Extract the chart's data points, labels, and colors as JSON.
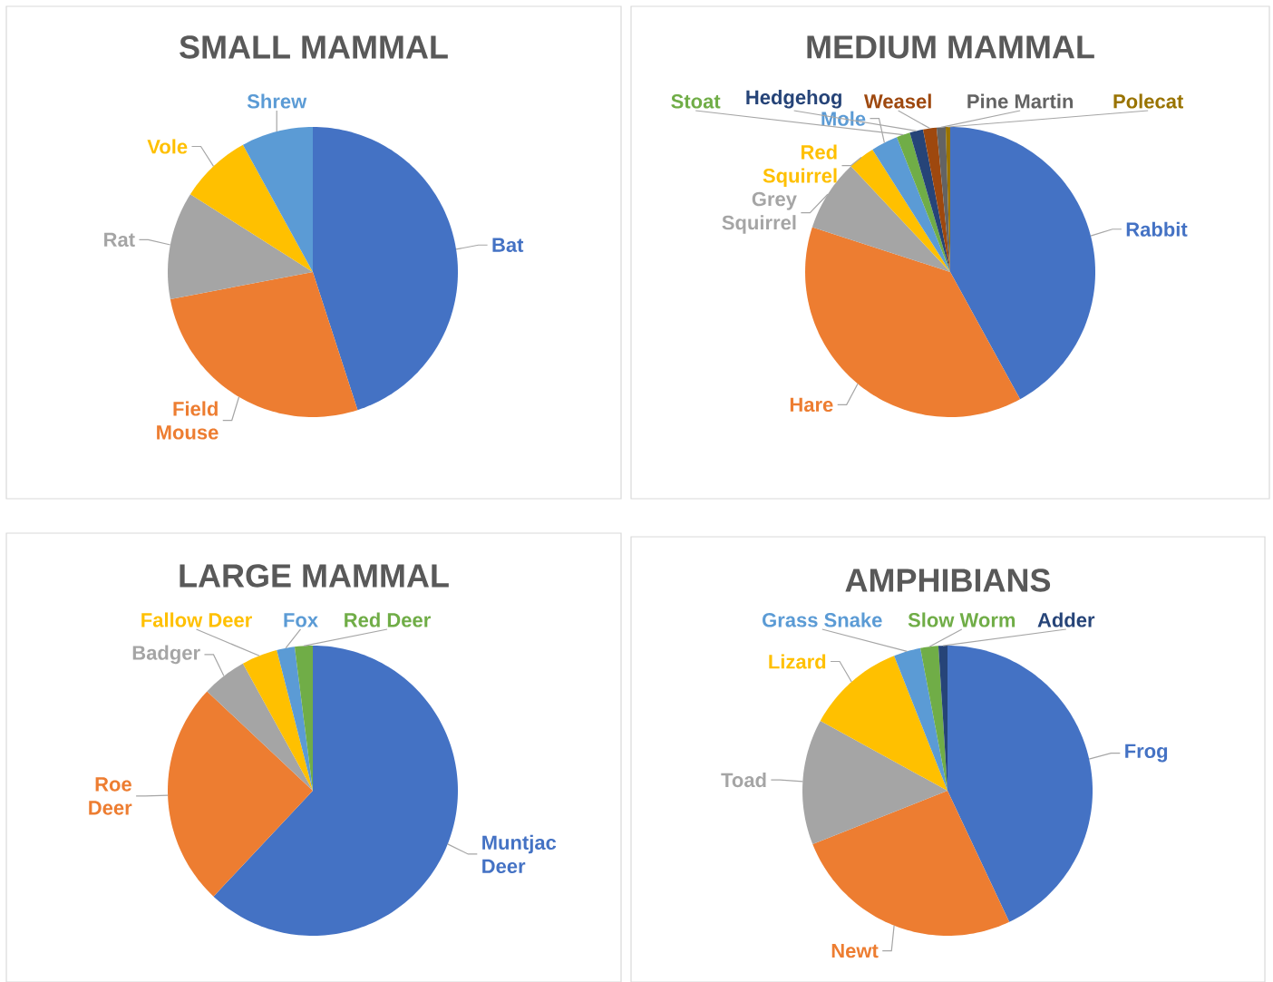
{
  "chart_data": [
    {
      "type": "pie",
      "title": "SMALL MAMMAL",
      "categories": [
        "Bat",
        "Field Mouse",
        "Rat",
        "Vole",
        "Shrew"
      ],
      "values": [
        45,
        27,
        12,
        8,
        8
      ],
      "colors": [
        "#4472c4",
        "#ed7d31",
        "#a5a5a5",
        "#ffc000",
        "#5b9bd5"
      ]
    },
    {
      "type": "pie",
      "title": "MEDIUM MAMMAL",
      "categories": [
        "Rabbit",
        "Hare",
        "Grey Squirrel",
        "Red Squirrel",
        "Mole",
        "Stoat",
        "Hedgehog",
        "Weasel",
        "Pine Martin",
        "Polecat"
      ],
      "values": [
        42,
        38,
        8,
        3,
        3,
        1.5,
        1.5,
        1.5,
        1,
        0.5
      ],
      "colors": [
        "#4472c4",
        "#ed7d31",
        "#a5a5a5",
        "#ffc000",
        "#5b9bd5",
        "#70ad47",
        "#264478",
        "#9e480e",
        "#636363",
        "#997300"
      ]
    },
    {
      "type": "pie",
      "title": "LARGE MAMMAL",
      "categories": [
        "Muntjac Deer",
        "Roe Deer",
        "Badger",
        "Fallow Deer",
        "Fox",
        "Red Deer"
      ],
      "values": [
        62,
        25,
        5,
        4,
        2,
        2
      ],
      "colors": [
        "#4472c4",
        "#ed7d31",
        "#a5a5a5",
        "#ffc000",
        "#5b9bd5",
        "#70ad47"
      ]
    },
    {
      "type": "pie",
      "title": "AMPHIBIANS",
      "categories": [
        "Frog",
        "Newt",
        "Toad",
        "Lizard",
        "Grass Snake",
        "Slow Worm",
        "Adder"
      ],
      "values": [
        43,
        26,
        14,
        11,
        3,
        2,
        1
      ],
      "colors": [
        "#4472c4",
        "#ed7d31",
        "#a5a5a5",
        "#ffc000",
        "#5b9bd5",
        "#70ad47",
        "#264478"
      ]
    }
  ]
}
